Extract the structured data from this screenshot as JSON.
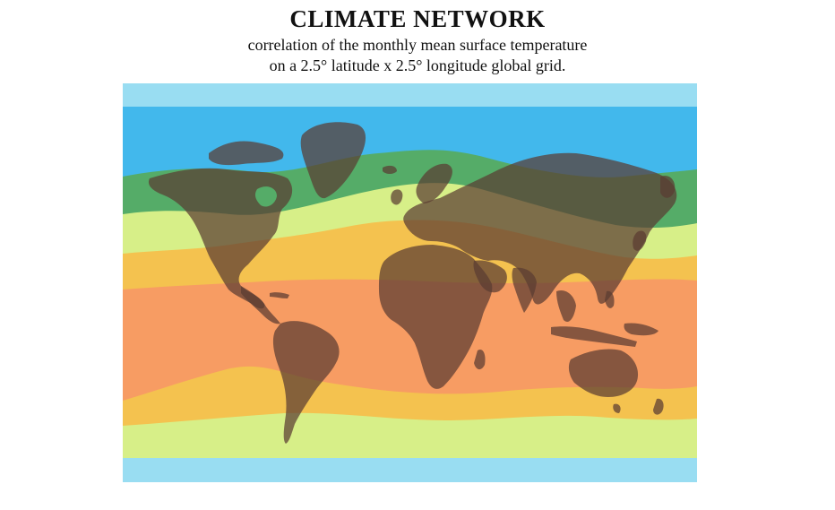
{
  "header": {
    "title": "CLIMATE NETWORK",
    "subtitle_line1": "correlation of the monthly mean surface temperature",
    "subtitle_line2": "on a 2.5° latitude x 2.5° longitude global grid."
  },
  "map": {
    "band_colors": {
      "polar": "#99ddf2",
      "cold": "#42b8ec",
      "cool": "#55ac68",
      "temperate": "#d7ef88",
      "warm": "#f4c24f",
      "tropical": "#f79c63"
    },
    "land_color": "#5a3b32"
  }
}
